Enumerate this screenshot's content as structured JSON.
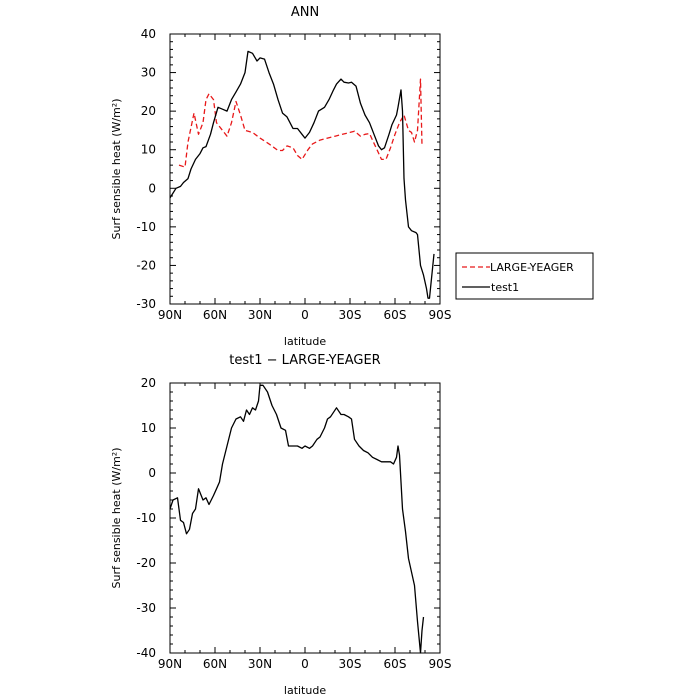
{
  "chart_data": [
    {
      "type": "line",
      "title": "ANN",
      "xlabel": "latitude",
      "ylabel": "Surf sensible heat (W/m²)",
      "xlim": [
        90,
        -90
      ],
      "ylim": [
        -30,
        40
      ],
      "xticks": [
        90,
        60,
        30,
        0,
        -30,
        -60,
        -90
      ],
      "xticklabels": [
        "90N",
        "60N",
        "30N",
        "0",
        "30S",
        "60S",
        "90S"
      ],
      "yticks": [
        -30,
        -20,
        -10,
        0,
        10,
        20,
        30,
        40
      ],
      "yticklabels": [
        "-30",
        "-20",
        "-10",
        "0",
        "10",
        "20",
        "30",
        "40"
      ],
      "legend": "right-outside",
      "series": [
        {
          "name": "LARGE-YEAGER",
          "color": "#e8191a",
          "dash": "dashed",
          "points": [
            [
              84,
              6
            ],
            [
              80,
              5.5
            ],
            [
              78,
              12
            ],
            [
              74,
              19.5
            ],
            [
              71,
              14
            ],
            [
              68,
              17
            ],
            [
              66,
              23
            ],
            [
              64,
              24.5
            ],
            [
              61,
              23
            ],
            [
              59,
              17
            ],
            [
              55,
              15
            ],
            [
              52,
              13.5
            ],
            [
              49,
              17
            ],
            [
              46,
              22.5
            ],
            [
              43,
              19
            ],
            [
              40,
              15
            ],
            [
              35,
              14.5
            ],
            [
              30,
              13
            ],
            [
              24,
              11.5
            ],
            [
              18,
              9.8
            ],
            [
              15,
              9.8
            ],
            [
              12,
              11
            ],
            [
              8,
              10.5
            ],
            [
              5,
              8.5
            ],
            [
              2,
              7.5
            ],
            [
              -2,
              10
            ],
            [
              -5,
              11.5
            ],
            [
              -10,
              12.5
            ],
            [
              -15,
              13
            ],
            [
              -20,
              13.5
            ],
            [
              -25,
              14
            ],
            [
              -30,
              14.5
            ],
            [
              -33,
              14.8
            ],
            [
              -37,
              13.5
            ],
            [
              -40,
              14
            ],
            [
              -43,
              14.2
            ],
            [
              -45,
              12.5
            ],
            [
              -48,
              10
            ],
            [
              -51,
              7.5
            ],
            [
              -54,
              7.5
            ],
            [
              -57,
              10.5
            ],
            [
              -60,
              14
            ],
            [
              -63,
              17
            ],
            [
              -66,
              19
            ],
            [
              -69,
              15
            ],
            [
              -71,
              14.5
            ],
            [
              -73,
              12
            ],
            [
              -75,
              15
            ],
            [
              -77,
              28.3
            ],
            [
              -78,
              11
            ]
          ]
        },
        {
          "name": "test1",
          "color": "#000000",
          "dash": "solid",
          "points": [
            [
              90,
              -2.5
            ],
            [
              86,
              0
            ],
            [
              83,
              0.5
            ],
            [
              81,
              1.5
            ],
            [
              78,
              2.5
            ],
            [
              76,
              5
            ],
            [
              73,
              7.5
            ],
            [
              70,
              9
            ],
            [
              68,
              10.5
            ],
            [
              66,
              10.8
            ],
            [
              63,
              14
            ],
            [
              61,
              17
            ],
            [
              58,
              21
            ],
            [
              55,
              20.5
            ],
            [
              52,
              20
            ],
            [
              49,
              23
            ],
            [
              46,
              25
            ],
            [
              43,
              27
            ],
            [
              40,
              30
            ],
            [
              38,
              35.5
            ],
            [
              35,
              35
            ],
            [
              32,
              33
            ],
            [
              30,
              33.8
            ],
            [
              27,
              33.5
            ],
            [
              24,
              30
            ],
            [
              21,
              27
            ],
            [
              18,
              23
            ],
            [
              15,
              19.5
            ],
            [
              12,
              18.5
            ],
            [
              10,
              17
            ],
            [
              8,
              15.5
            ],
            [
              5,
              15.5
            ],
            [
              2,
              14
            ],
            [
              0,
              13
            ],
            [
              -3,
              14.5
            ],
            [
              -6,
              17
            ],
            [
              -9,
              20
            ],
            [
              -13,
              21
            ],
            [
              -16,
              23
            ],
            [
              -19,
              25.5
            ],
            [
              -21,
              27
            ],
            [
              -24,
              28.3
            ],
            [
              -26,
              27.5
            ],
            [
              -29,
              27.3
            ],
            [
              -31,
              27.5
            ],
            [
              -34,
              26.5
            ],
            [
              -37,
              22
            ],
            [
              -40,
              19
            ],
            [
              -43,
              17
            ],
            [
              -46,
              14
            ],
            [
              -49,
              11
            ],
            [
              -51,
              10
            ],
            [
              -53,
              10.5
            ],
            [
              -56,
              14
            ],
            [
              -58,
              16.5
            ],
            [
              -61,
              19
            ],
            [
              -62,
              21
            ],
            [
              -64,
              25.5
            ],
            [
              -65,
              20
            ],
            [
              -66,
              2.5
            ],
            [
              -67,
              -3
            ],
            [
              -69,
              -10
            ],
            [
              -71,
              -11
            ],
            [
              -74,
              -11.5
            ],
            [
              -75,
              -12
            ],
            [
              -77,
              -20
            ],
            [
              -79,
              -22.5
            ],
            [
              -81,
              -26
            ],
            [
              -82,
              -28.5
            ],
            [
              -83,
              -28.5
            ],
            [
              -86,
              -17
            ]
          ]
        }
      ]
    },
    {
      "type": "line",
      "title": "test1 − LARGE-YEAGER",
      "xlabel": "latitude",
      "ylabel": "Surf sensible heat (W/m²)",
      "xlim": [
        90,
        -90
      ],
      "ylim": [
        -40,
        20
      ],
      "xticks": [
        90,
        60,
        30,
        0,
        -30,
        -60,
        -90
      ],
      "xticklabels": [
        "90N",
        "60N",
        "30N",
        "0",
        "30S",
        "60S",
        "90S"
      ],
      "yticks": [
        -40,
        -30,
        -20,
        -10,
        0,
        10,
        20
      ],
      "yticklabels": [
        "-40",
        "-30",
        "-20",
        "-10",
        "0",
        "10",
        "20"
      ],
      "series": [
        {
          "color": "#000000",
          "dash": "solid",
          "points": [
            [
              90,
              -8
            ],
            [
              88,
              -6
            ],
            [
              85,
              -5.5
            ],
            [
              83,
              -10.5
            ],
            [
              81,
              -11
            ],
            [
              79,
              -13.5
            ],
            [
              77,
              -12.5
            ],
            [
              75,
              -9
            ],
            [
              73,
              -8
            ],
            [
              71,
              -3.5
            ],
            [
              68,
              -6
            ],
            [
              66,
              -5.5
            ],
            [
              64,
              -7
            ],
            [
              61,
              -5
            ],
            [
              59,
              -3.5
            ],
            [
              57,
              -2
            ],
            [
              55,
              2
            ],
            [
              52,
              6
            ],
            [
              49,
              10
            ],
            [
              46,
              12
            ],
            [
              43,
              12.5
            ],
            [
              41,
              11.5
            ],
            [
              39,
              14
            ],
            [
              37,
              13
            ],
            [
              35,
              14.5
            ],
            [
              33,
              14
            ],
            [
              31,
              16
            ],
            [
              30,
              19.5
            ],
            [
              28,
              19.5
            ],
            [
              25,
              18
            ],
            [
              22,
              15
            ],
            [
              19,
              13
            ],
            [
              16,
              10
            ],
            [
              13,
              9.5
            ],
            [
              11,
              6
            ],
            [
              8,
              6
            ],
            [
              5,
              6
            ],
            [
              2,
              5.5
            ],
            [
              0,
              6
            ],
            [
              -3,
              5.5
            ],
            [
              -5,
              6
            ],
            [
              -8,
              7.5
            ],
            [
              -10,
              8
            ],
            [
              -13,
              10
            ],
            [
              -15,
              12
            ],
            [
              -17,
              12.5
            ],
            [
              -19,
              13.5
            ],
            [
              -21,
              14.5
            ],
            [
              -24,
              13
            ],
            [
              -26,
              13
            ],
            [
              -29,
              12.5
            ],
            [
              -31,
              12
            ],
            [
              -33,
              7.5
            ],
            [
              -36,
              6
            ],
            [
              -39,
              5
            ],
            [
              -42,
              4.5
            ],
            [
              -45,
              3.5
            ],
            [
              -48,
              3
            ],
            [
              -51,
              2.5
            ],
            [
              -54,
              2.5
            ],
            [
              -57,
              2.5
            ],
            [
              -59,
              2
            ],
            [
              -61,
              3.5
            ],
            [
              -62,
              6
            ],
            [
              -63,
              4
            ],
            [
              -65,
              -8
            ],
            [
              -67,
              -13
            ],
            [
              -69,
              -19
            ],
            [
              -71,
              -22
            ],
            [
              -73,
              -25
            ],
            [
              -75,
              -33
            ],
            [
              -77,
              -40
            ],
            [
              -78,
              -35
            ],
            [
              -79,
              -32
            ]
          ]
        }
      ]
    }
  ]
}
